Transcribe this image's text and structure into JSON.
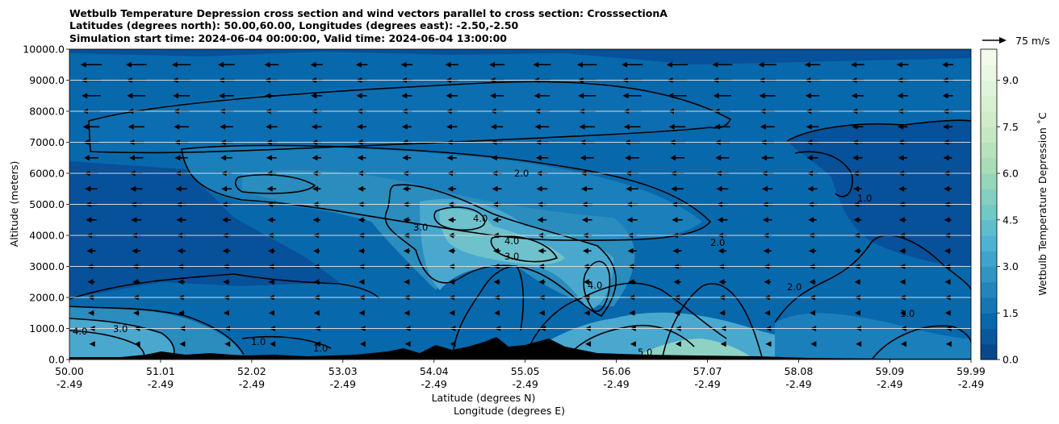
{
  "chart_data": {
    "type": "heatmap",
    "title": [
      "Wetbulb Temperature Depression cross section and wind vectors parallel to cross section: CrosssectionA",
      "Latitudes (degrees north): 50.00,60.00, Longitudes (degrees east): -2.50,-2.50",
      "Simulation start time: 2024-06-04 00:00:00, Valid time: 2024-06-04 13:00:00"
    ],
    "ylabel": "Altitude (meters)",
    "xlabel": [
      "Latitude (degrees N)",
      "Longitude (degrees E)"
    ],
    "ylim": [
      0,
      10000
    ],
    "yticks": [
      "0.0",
      "1000.0",
      "2000.0",
      "3000.0",
      "4000.0",
      "5000.0",
      "6000.0",
      "7000.0",
      "8000.0",
      "9000.0",
      "10000.0"
    ],
    "xlim": [
      50.0,
      59.99
    ],
    "xticks": [
      {
        "lat": "50.00",
        "lon": "-2.49"
      },
      {
        "lat": "51.01",
        "lon": "-2.49"
      },
      {
        "lat": "52.02",
        "lon": "-2.49"
      },
      {
        "lat": "53.03",
        "lon": "-2.49"
      },
      {
        "lat": "54.04",
        "lon": "-2.49"
      },
      {
        "lat": "55.05",
        "lon": "-2.49"
      },
      {
        "lat": "56.06",
        "lon": "-2.49"
      },
      {
        "lat": "57.07",
        "lon": "-2.49"
      },
      {
        "lat": "58.08",
        "lon": "-2.49"
      },
      {
        "lat": "59.09",
        "lon": "-2.49"
      },
      {
        "lat": "59.99",
        "lon": "-2.49"
      }
    ],
    "grid": "horizontal",
    "colorbar": {
      "label": "Wetbulb Temperature Depression ˚C",
      "min": 0,
      "max": 10,
      "step": 0.5,
      "ticks": [
        "0.0",
        "1.5",
        "3.0",
        "4.5",
        "6.0",
        "7.5",
        "9.0"
      ],
      "colormap": "GnBu_r"
    },
    "quiver_key": "75 m/s",
    "contour_labels": [
      "1.0",
      "2.0",
      "3.0",
      "4.0",
      "5.0"
    ],
    "wind_direction": "left (negative along section)"
  }
}
